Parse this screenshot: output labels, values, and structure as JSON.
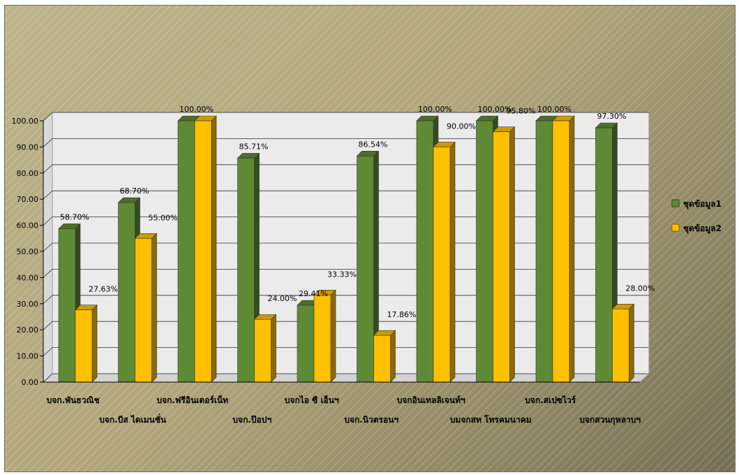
{
  "chart_data": {
    "type": "bar",
    "categories": [
      "บจก.พันธวณิช",
      "บจก.บีส ไดเมนชั่น",
      "บจก.ฟรีอินเตอร์เน็ท",
      "บจก.ป๊อปฯ",
      "บจกไอ ซี เอ็นฯ",
      "บจก.นิวตรอนฯ",
      "บจกอินเทลลิเจนท์ฯ",
      "บมจกสท โทรคมนาคม",
      "บจก.สเปซไวร์",
      "บจกสวนกุหลาบฯ"
    ],
    "series": [
      {
        "name": "ชุดข้อมูล1",
        "color": "#5f8a35",
        "values": [
          58.7,
          68.7,
          100.0,
          85.71,
          29.41,
          86.54,
          100.0,
          100.0,
          100.0,
          97.3
        ],
        "labels": [
          "58.70%",
          "68.70%",
          "100.00%",
          "85.71%",
          "29.41%",
          "86.54%",
          "100.00%",
          "100.00%",
          "100.00%",
          "97.30%"
        ]
      },
      {
        "name": "ชุดข้อมูล2",
        "color": "#ffc000",
        "values": [
          27.63,
          55.0,
          100.0,
          24.0,
          33.33,
          17.86,
          90.0,
          95.8,
          100.0,
          28.0
        ],
        "labels": [
          "27.63%",
          "55.00%",
          "",
          "24.00%",
          "33.33%",
          "17.86%",
          "90.00%",
          "95.80%",
          "",
          "28.00%"
        ]
      }
    ],
    "ylim": [
      0,
      100
    ],
    "yticks": [
      "0.00",
      "10.00",
      "20.00",
      "30.00",
      "40.00",
      "50.00",
      "60.00",
      "70.00",
      "80.00",
      "90.00",
      "100.00"
    ],
    "grid": true,
    "legend_position": "right",
    "legend_labels": [
      "ชุดข้อมูล1",
      "ชุดข้อมูล2"
    ]
  }
}
